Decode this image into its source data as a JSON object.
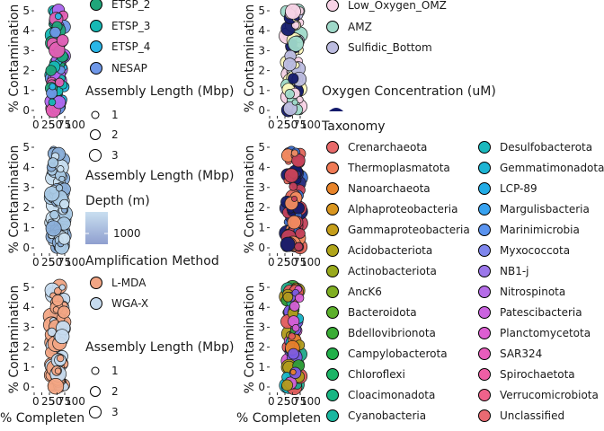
{
  "axis_labels": {
    "y": "% Contamination",
    "x": "% Completen"
  },
  "chart_data": [
    {
      "type": "scatter",
      "panel": "left-top",
      "ylabel": "% Contamination",
      "yticks": [
        0,
        1,
        2,
        3,
        4,
        5
      ],
      "xtick_labels": [
        "0",
        "25",
        "50",
        "75",
        "100"
      ],
      "ylim": [
        0,
        5
      ],
      "xlim": [
        0,
        100
      ],
      "legend_colors": [
        "#1fa57a",
        "#16b9b5",
        "#2ab6e8",
        "#6e97e8",
        "#b267f0",
        "#e45fb4"
      ]
    },
    {
      "type": "scatter",
      "panel": "right-top",
      "ylabel": "% Contamination",
      "yticks": [
        0,
        1,
        2,
        3,
        4,
        5
      ],
      "xtick_labels": [
        "0",
        "25",
        "50",
        "75",
        "100"
      ],
      "ylim": [
        0,
        5
      ],
      "xlim": [
        0,
        100
      ],
      "legend_colors": [
        "#f8d3e6",
        "#9fd9c9",
        "#bcbce0",
        "#fdf8bd",
        "#131a6b"
      ]
    },
    {
      "type": "scatter",
      "panel": "left-middle",
      "ylabel": "% Contamination",
      "yticks": [
        0,
        1,
        2,
        3,
        4,
        5
      ],
      "xtick_labels": [
        "0",
        "25",
        "50",
        "75",
        "100"
      ],
      "ylim": [
        0,
        5
      ],
      "xlim": [
        0,
        100
      ],
      "legend_colors": [
        "#c9dff0",
        "#a8c8e4",
        "#8aaed8"
      ]
    },
    {
      "type": "scatter",
      "panel": "right-middle",
      "ylabel": "% Contamination",
      "yticks": [
        0,
        1,
        2,
        3,
        4,
        5
      ],
      "xtick_labels": [
        "0",
        "25",
        "50",
        "75",
        "100"
      ],
      "ylim": [
        0,
        5
      ],
      "xlim": [
        0,
        100
      ],
      "legend_colors": [
        "#131a6b",
        "#2b2f80",
        "#c4405a",
        "#e2665a",
        "#3b6fd0",
        "#f28c60"
      ]
    },
    {
      "type": "scatter",
      "panel": "left-bottom",
      "ylabel": "% Contamination",
      "xlabel": "% Completen",
      "yticks": [
        0,
        1,
        2,
        3,
        4,
        5
      ],
      "xtick_labels": [
        "0",
        "25",
        "50",
        "75",
        "100"
      ],
      "ylim": [
        0,
        5
      ],
      "xlim": [
        0,
        100
      ],
      "legend_colors": [
        "#f2a584",
        "#c6dbef"
      ]
    },
    {
      "type": "scatter",
      "panel": "right-bottom",
      "ylabel": "% Contamination",
      "xlabel": "% Completen",
      "yticks": [
        0,
        1,
        2,
        3,
        4,
        5
      ],
      "xtick_labels": [
        "0",
        "25",
        "50",
        "75",
        "100"
      ],
      "ylim": [
        0,
        5
      ],
      "xlim": [
        0,
        100
      ],
      "legend_colors": [
        "#2f9e3b",
        "#20a98a",
        "#e25b5b",
        "#ea7e2a",
        "#b19b1b",
        "#7b5be3",
        "#d65fd6",
        "#18b7c9"
      ]
    }
  ],
  "legends": {
    "left_top": {
      "items": [
        {
          "label": "ETSP_2",
          "color": "#1fa57a"
        },
        {
          "label": "ETSP_3",
          "color": "#16b9b5"
        },
        {
          "label": "ETSP_4",
          "color": "#2ab6e8"
        },
        {
          "label": "NESAP",
          "color": "#6e97e8"
        }
      ],
      "size_title": "Assembly Length (Mbp)",
      "sizes": [
        "1",
        "2",
        "3"
      ]
    },
    "right_top": {
      "items": [
        {
          "label": "Low_Oxygen_OMZ",
          "color": "#f8d3e6"
        },
        {
          "label": "AMZ",
          "color": "#9fd9c9"
        },
        {
          "label": "Sulfidic_Bottom",
          "color": "#bcbce0"
        }
      ],
      "oxygen_title": "Oxygen Concentration (uM)",
      "oxygen_color": "#131a6b"
    },
    "left_middle": {
      "size_title": "Assembly Length (Mbp)",
      "depth_title": "Depth (m)",
      "depth_label": "1000",
      "depth_from": "#c9dff0",
      "depth_to": "#8f9fcf"
    },
    "left_bottom": {
      "method_title": "Amplification Method",
      "methods": [
        {
          "label": "L-MDA",
          "color": "#f2a584"
        },
        {
          "label": "WGA-X",
          "color": "#c6dbef"
        }
      ],
      "size_title": "Assembly Length (Mbp)",
      "sizes": [
        "1",
        "2",
        "3"
      ]
    },
    "taxonomy": {
      "title": "Taxonomy",
      "col1": [
        {
          "label": "Crenarchaeota",
          "color": "#e86a6a"
        },
        {
          "label": "Thermoplasmatota",
          "color": "#f07a55"
        },
        {
          "label": "Nanoarchaeota",
          "color": "#e8842a"
        },
        {
          "label": "Alphaproteobacteria",
          "color": "#d9961f"
        },
        {
          "label": "Gammaproteobacteria",
          "color": "#c59e1a"
        },
        {
          "label": "Acidobacteriota",
          "color": "#b0a51a"
        },
        {
          "label": "Actinobacteriota",
          "color": "#98a91c"
        },
        {
          "label": "AncK6",
          "color": "#7fae22"
        },
        {
          "label": "Bacteroidota",
          "color": "#5cb02b"
        },
        {
          "label": "Bdellovibrionota",
          "color": "#3aac35"
        },
        {
          "label": "Campylobacterota",
          "color": "#22b04a"
        },
        {
          "label": "Chloroflexi",
          "color": "#1bb466"
        },
        {
          "label": "Cloacimonadota",
          "color": "#18b683"
        },
        {
          "label": "Cyanobacteria",
          "color": "#19b7a0"
        }
      ],
      "col2": [
        {
          "label": "Desulfobacterota",
          "color": "#1ab8bd"
        },
        {
          "label": "Gemmatimonadota",
          "color": "#1db4d3"
        },
        {
          "label": "LCP-89",
          "color": "#22ace6"
        },
        {
          "label": "Margulisbacteria",
          "color": "#37a2f0"
        },
        {
          "label": "Marinimicrobia",
          "color": "#5a93ef"
        },
        {
          "label": "Myxococcota",
          "color": "#7f86ed"
        },
        {
          "label": "NB1-j",
          "color": "#9b77ea"
        },
        {
          "label": "Nitrospinota",
          "color": "#b56ce8"
        },
        {
          "label": "Patescibacteria",
          "color": "#cb63e0"
        },
        {
          "label": "Planctomycetota",
          "color": "#dd5ed2"
        },
        {
          "label": "SAR324",
          "color": "#e95dbd"
        },
        {
          "label": "Spirochaetota",
          "color": "#ef5ea5"
        },
        {
          "label": "Verrucomicrobiota",
          "color": "#ef628b"
        },
        {
          "label": "Unclassified",
          "color": "#e96a72"
        }
      ]
    }
  }
}
